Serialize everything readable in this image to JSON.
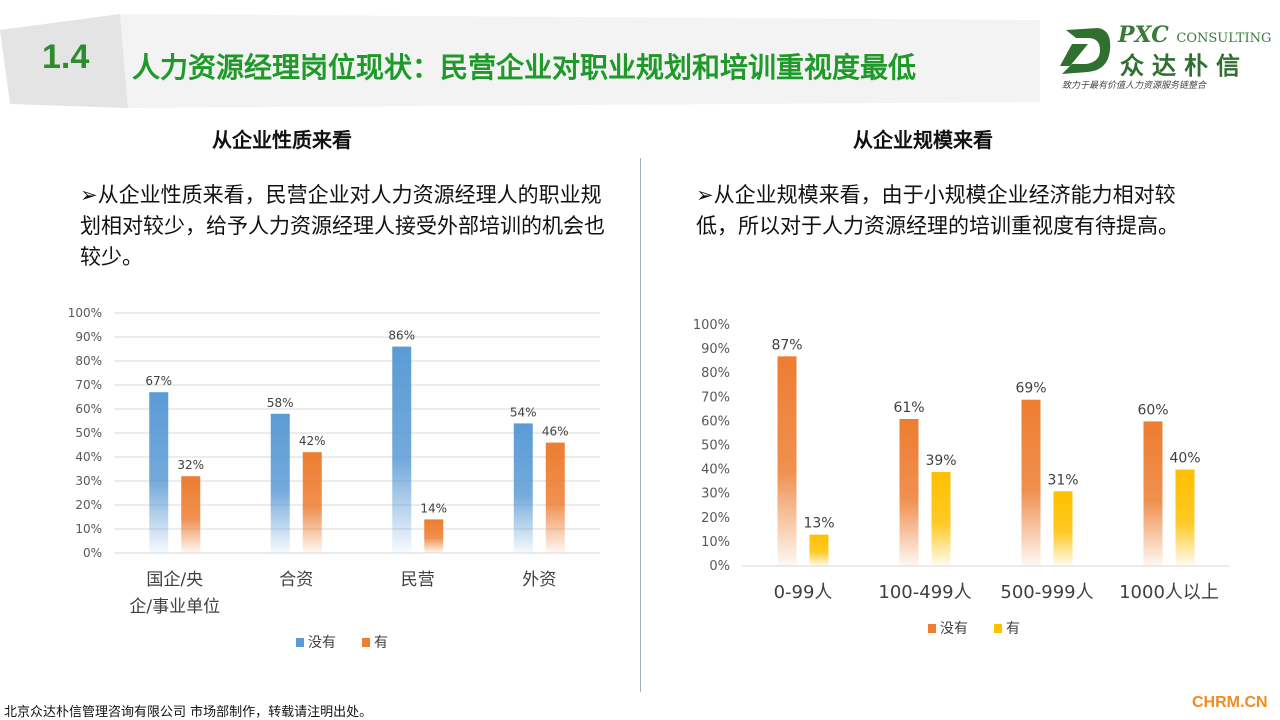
{
  "header": {
    "section_number": "1.4",
    "title": "人力资源经理岗位现状：民营企业对职业规划和培训重视度最低"
  },
  "logo": {
    "brand_en": "PXC",
    "brand_en_suffix": "CONSULTING",
    "brand_cn": "众达朴信",
    "slogan": "致力于最有价值人力资源服务链整合"
  },
  "left": {
    "heading": "从企业性质来看",
    "description": "➢从企业性质来看，民营企业对人力资源经理人的职业规划相对较少，给予人力资源经理人接受外部培训的机会也较少。"
  },
  "right": {
    "heading": "从企业规模来看",
    "description": "➢从企业规模来看，由于小规模企业经济能力相对较低，所以对于人力资源经理的培训重视度有待提高。"
  },
  "footer": {
    "text": "北京众达朴信管理咨询有限公司 市场部制作，转载请注明出处。",
    "watermark": "CHRM.CN"
  },
  "chart_data": [
    {
      "type": "bar",
      "categories": [
        "国企/央企/事业单位",
        "合资",
        "民营",
        "外资"
      ],
      "category_lines": [
        [
          "国企/央",
          "企/事业单位"
        ],
        [
          "合资"
        ],
        [
          "民营"
        ],
        [
          "外资"
        ]
      ],
      "series": [
        {
          "name": "没有",
          "values": [
            67,
            58,
            86,
            54
          ],
          "color": "#5b9bd5"
        },
        {
          "name": "有",
          "values": [
            32,
            42,
            14,
            46
          ],
          "color": "#ed7d31"
        }
      ],
      "value_suffix": "%",
      "ylim": [
        0,
        100
      ],
      "yticks": [
        "0%",
        "10%",
        "20%",
        "30%",
        "40%",
        "50%",
        "60%",
        "70%",
        "80%",
        "90%",
        "100%"
      ],
      "grid": true,
      "legend": "bottom"
    },
    {
      "type": "bar",
      "categories": [
        "0-99人",
        "100-499人",
        "500-999人",
        "1000人以上"
      ],
      "category_lines": [
        [
          "0-99人"
        ],
        [
          "100-499人"
        ],
        [
          "500-999人"
        ],
        [
          "1000人以上"
        ]
      ],
      "series": [
        {
          "name": "没有",
          "values": [
            87,
            61,
            69,
            60
          ],
          "color": "#ed7d31"
        },
        {
          "name": "有",
          "values": [
            13,
            39,
            31,
            40
          ],
          "color": "#ffc000"
        }
      ],
      "value_suffix": "%",
      "ylim": [
        0,
        100
      ],
      "yticks": [
        "0%",
        "10%",
        "20%",
        "30%",
        "40%",
        "50%",
        "60%",
        "70%",
        "80%",
        "90%",
        "100%"
      ],
      "grid": false,
      "legend": "bottom"
    }
  ]
}
